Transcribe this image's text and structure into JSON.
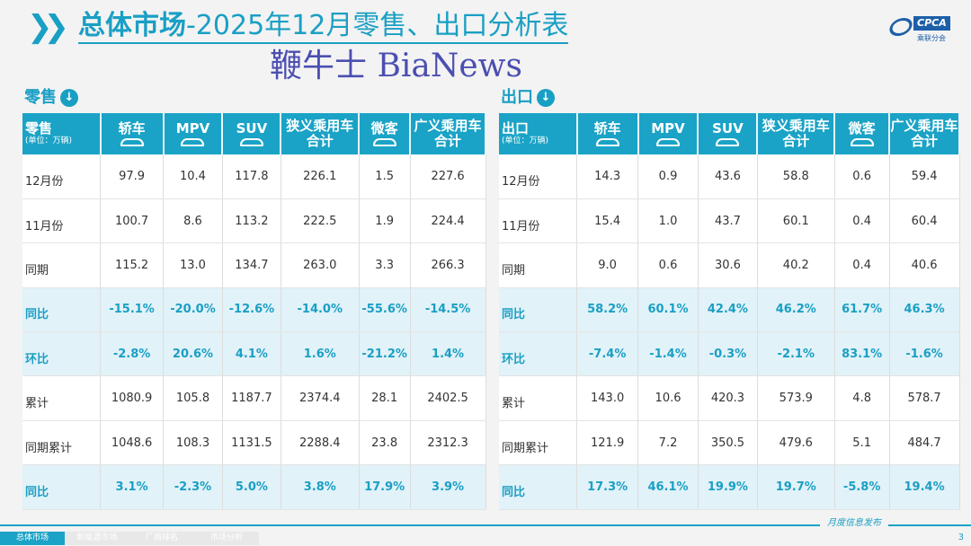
{
  "title": {
    "bold": "总体市场",
    "rest": "-2025年12月零售、出口分析表"
  },
  "logo": {
    "name": "CPCA",
    "sub": "乘联分会"
  },
  "retail": {
    "section": "零售",
    "head": "零售",
    "unit": "(单位：万辆)",
    "cols": [
      "轿车",
      "MPV",
      "SUV",
      "狭义乘用车合计",
      "微客",
      "广义乘用车合计"
    ],
    "rows": [
      {
        "label": "12月份",
        "hl": false,
        "v": [
          "97.9",
          "10.4",
          "117.8",
          "226.1",
          "1.5",
          "227.6"
        ]
      },
      {
        "label": "11月份",
        "hl": false,
        "v": [
          "100.7",
          "8.6",
          "113.2",
          "222.5",
          "1.9",
          "224.4"
        ]
      },
      {
        "label": "同期",
        "hl": false,
        "v": [
          "115.2",
          "13.0",
          "134.7",
          "263.0",
          "3.3",
          "266.3"
        ]
      },
      {
        "label": "同比",
        "hl": true,
        "v": [
          "-15.1%",
          "-20.0%",
          "-12.6%",
          "-14.0%",
          "-55.6%",
          "-14.5%"
        ]
      },
      {
        "label": "环比",
        "hl": true,
        "v": [
          "-2.8%",
          "20.6%",
          "4.1%",
          "1.6%",
          "-21.2%",
          "1.4%"
        ]
      },
      {
        "label": "累计",
        "hl": false,
        "v": [
          "1080.9",
          "105.8",
          "1187.7",
          "2374.4",
          "28.1",
          "2402.5"
        ]
      },
      {
        "label": "同期累计",
        "hl": false,
        "v": [
          "1048.6",
          "108.3",
          "1131.5",
          "2288.4",
          "23.8",
          "2312.3"
        ]
      },
      {
        "label": "同比",
        "hl": true,
        "v": [
          "3.1%",
          "-2.3%",
          "5.0%",
          "3.8%",
          "17.9%",
          "3.9%"
        ]
      }
    ]
  },
  "export": {
    "section": "出口",
    "head": "出口",
    "unit": "(单位：万辆)",
    "cols": [
      "轿车",
      "MPV",
      "SUV",
      "狭义乘用车合计",
      "微客",
      "广义乘用车合计"
    ],
    "rows": [
      {
        "label": "12月份",
        "hl": false,
        "v": [
          "14.3",
          "0.9",
          "43.6",
          "58.8",
          "0.6",
          "59.4"
        ]
      },
      {
        "label": "11月份",
        "hl": false,
        "v": [
          "15.4",
          "1.0",
          "43.7",
          "60.1",
          "0.4",
          "60.4"
        ]
      },
      {
        "label": "同期",
        "hl": false,
        "v": [
          "9.0",
          "0.6",
          "30.6",
          "40.2",
          "0.4",
          "40.6"
        ]
      },
      {
        "label": "同比",
        "hl": true,
        "v": [
          "58.2%",
          "60.1%",
          "42.4%",
          "46.2%",
          "61.7%",
          "46.3%"
        ]
      },
      {
        "label": "环比",
        "hl": true,
        "v": [
          "-7.4%",
          "-1.4%",
          "-0.3%",
          "-2.1%",
          "83.1%",
          "-1.6%"
        ]
      },
      {
        "label": "累计",
        "hl": false,
        "v": [
          "143.0",
          "10.6",
          "420.3",
          "573.9",
          "4.8",
          "578.7"
        ]
      },
      {
        "label": "同期累计",
        "hl": false,
        "v": [
          "121.9",
          "7.2",
          "350.5",
          "479.6",
          "5.1",
          "484.7"
        ]
      },
      {
        "label": "同比",
        "hl": true,
        "v": [
          "17.3%",
          "46.1%",
          "19.9%",
          "19.7%",
          "-5.8%",
          "19.4%"
        ]
      }
    ]
  },
  "watermark": "鞭牛士 BiaNews",
  "footer": {
    "publish": "月度信息发布",
    "page": "3",
    "tabs": [
      "总体市场",
      "新能源市场",
      "厂商排名",
      "市场分析"
    ]
  }
}
